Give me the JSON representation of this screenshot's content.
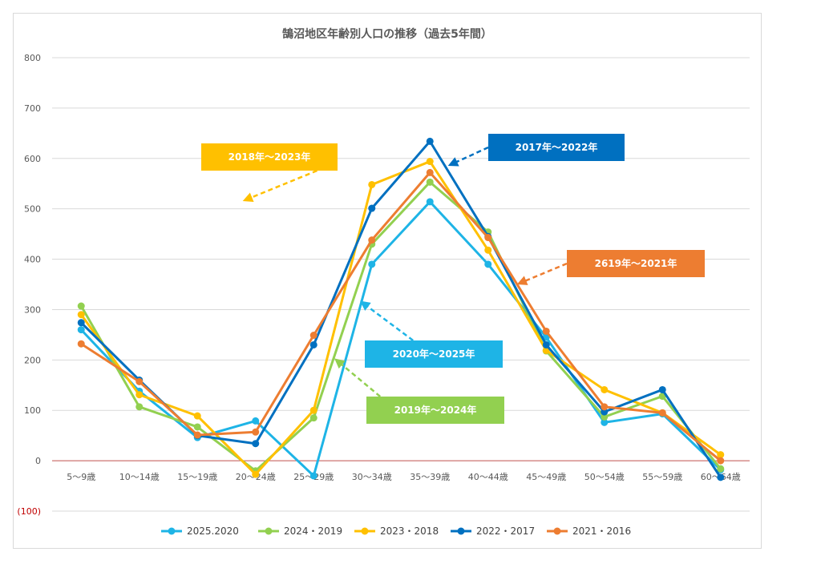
{
  "chart_data": {
    "type": "line",
    "title": "鵠沼地区年齢別人口の推移（過去5年間）",
    "categories": [
      "5〜9歳",
      "10〜14歳",
      "15〜19歳",
      "20〜24歳",
      "25〜29歳",
      "30〜34歳",
      "35〜39歳",
      "40〜44歳",
      "45〜49歳",
      "50〜54歳",
      "55〜59歳",
      "60〜64歳"
    ],
    "ylim": [
      -100,
      800
    ],
    "yticks": [
      {
        "value": 800,
        "label": "800"
      },
      {
        "value": 700,
        "label": "700"
      },
      {
        "value": 600,
        "label": "600"
      },
      {
        "value": 500,
        "label": "500"
      },
      {
        "value": 400,
        "label": "400"
      },
      {
        "value": 300,
        "label": "300"
      },
      {
        "value": 200,
        "label": "200"
      },
      {
        "value": 100,
        "label": "100"
      },
      {
        "value": 0,
        "label": "0"
      },
      {
        "value": -100,
        "label": "(100)"
      }
    ],
    "series": [
      {
        "name": "2025.2020",
        "color": "#1eb4e6",
        "values": [
          260,
          138,
          46,
          79,
          -30,
          390,
          514,
          390,
          245,
          76,
          93,
          -18
        ]
      },
      {
        "name": "2024・2019",
        "color": "#92d050",
        "values": [
          307,
          107,
          67,
          -20,
          85,
          430,
          553,
          454,
          218,
          87,
          128,
          -16
        ]
      },
      {
        "name": "2023・2018",
        "color": "#ffc000",
        "values": [
          290,
          131,
          89,
          -27,
          100,
          548,
          594,
          418,
          219,
          141,
          95,
          12
        ]
      },
      {
        "name": "2022・2017",
        "color": "#0070c0",
        "values": [
          274,
          160,
          50,
          34,
          230,
          501,
          634,
          445,
          230,
          97,
          141,
          -33
        ]
      },
      {
        "name": "2021・2016",
        "color": "#ed7d31",
        "values": [
          232,
          157,
          51,
          57,
          249,
          438,
          572,
          443,
          257,
          107,
          95,
          0
        ]
      }
    ],
    "annotations": [
      {
        "text": "2018年〜2023年",
        "color": "#ffc000",
        "points_to": {
          "category_index": 5,
          "value": 520
        }
      },
      {
        "text": "2017年〜2022年",
        "color": "#0070c0",
        "points_to": {
          "category_index": 6,
          "value": 585
        }
      },
      {
        "text": "2619年〜2021年",
        "color": "#ed7d31",
        "points_to": {
          "category_index": 7,
          "value": 350
        }
      },
      {
        "text": "2020年〜2025年",
        "color": "#1eb4e6",
        "points_to": {
          "category_index": 5,
          "value": 310
        }
      },
      {
        "text": "2019年〜2024年",
        "color": "#92d050",
        "points_to": {
          "category_index": 4,
          "value": 200
        }
      }
    ]
  }
}
